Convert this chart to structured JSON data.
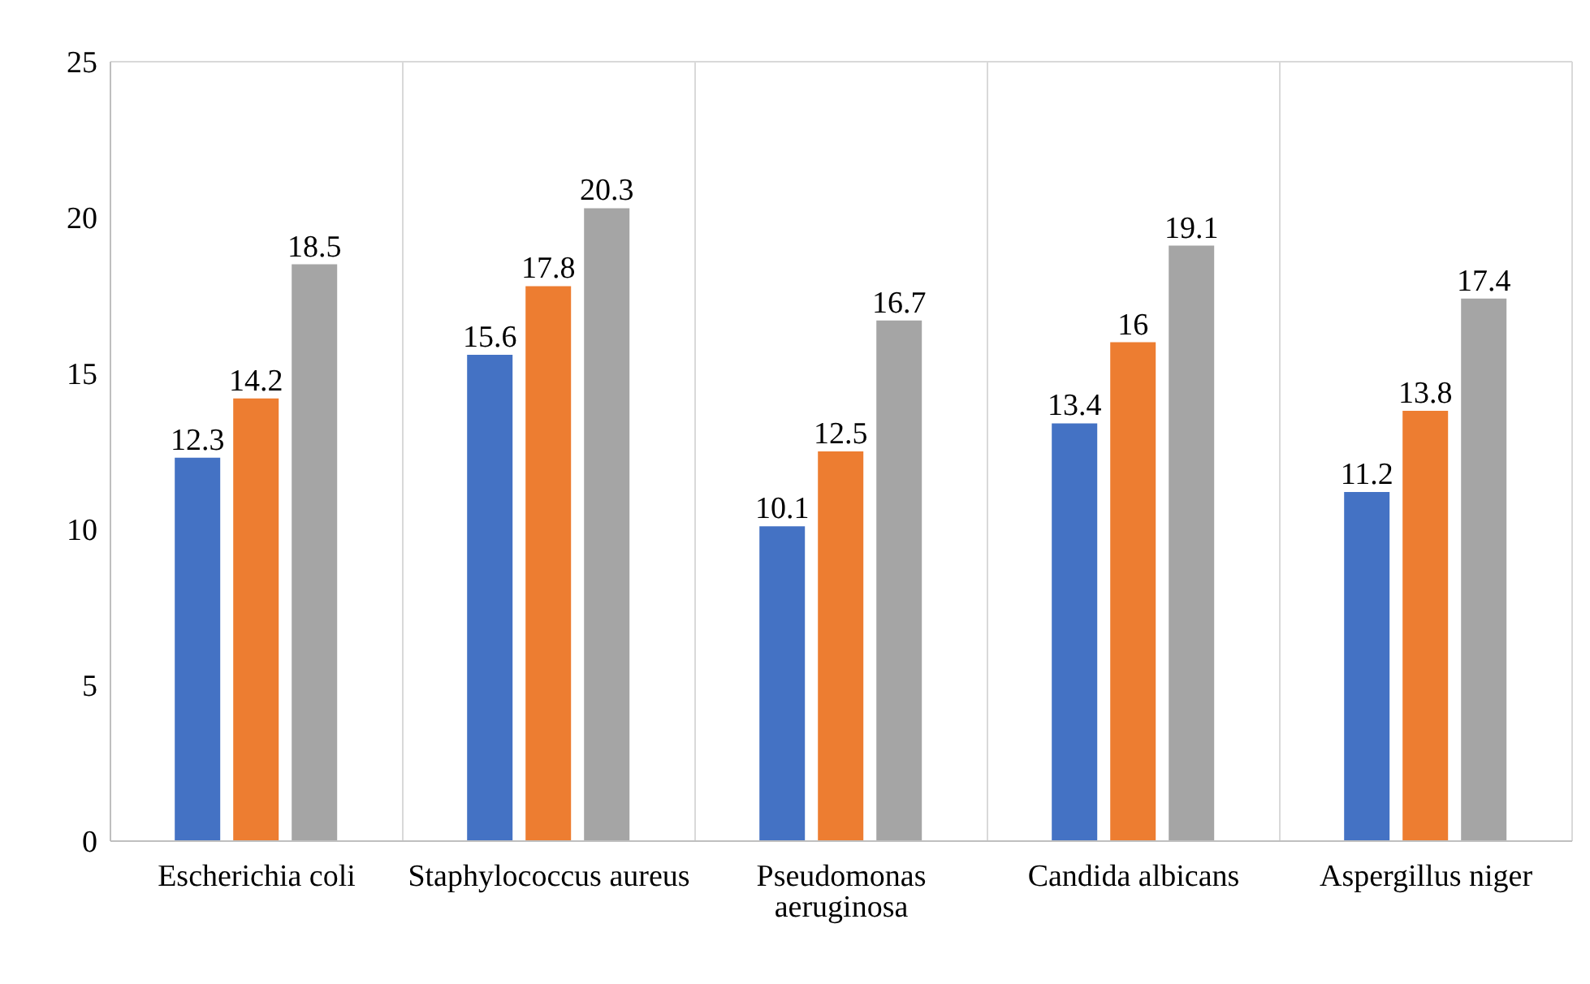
{
  "chart_data": {
    "type": "bar",
    "categories": [
      "Escherichia coli",
      "Staphylococcus aureus",
      "Pseudomonas aeruginosa",
      "Candida albicans",
      "Aspergillus niger"
    ],
    "series": [
      {
        "color": "#4472c4",
        "values": [
          12.3,
          15.6,
          10.1,
          13.4,
          11.2
        ]
      },
      {
        "color": "#ed7d31",
        "values": [
          14.2,
          17.8,
          12.5,
          16,
          13.8
        ]
      },
      {
        "color": "#a5a5a5",
        "values": [
          18.5,
          20.3,
          16.7,
          19.1,
          17.4
        ]
      }
    ],
    "ylim": [
      0,
      25
    ],
    "yticks": [
      0,
      5,
      10,
      15,
      20,
      25
    ],
    "grid": true,
    "data_labels": true,
    "legend": false
  }
}
